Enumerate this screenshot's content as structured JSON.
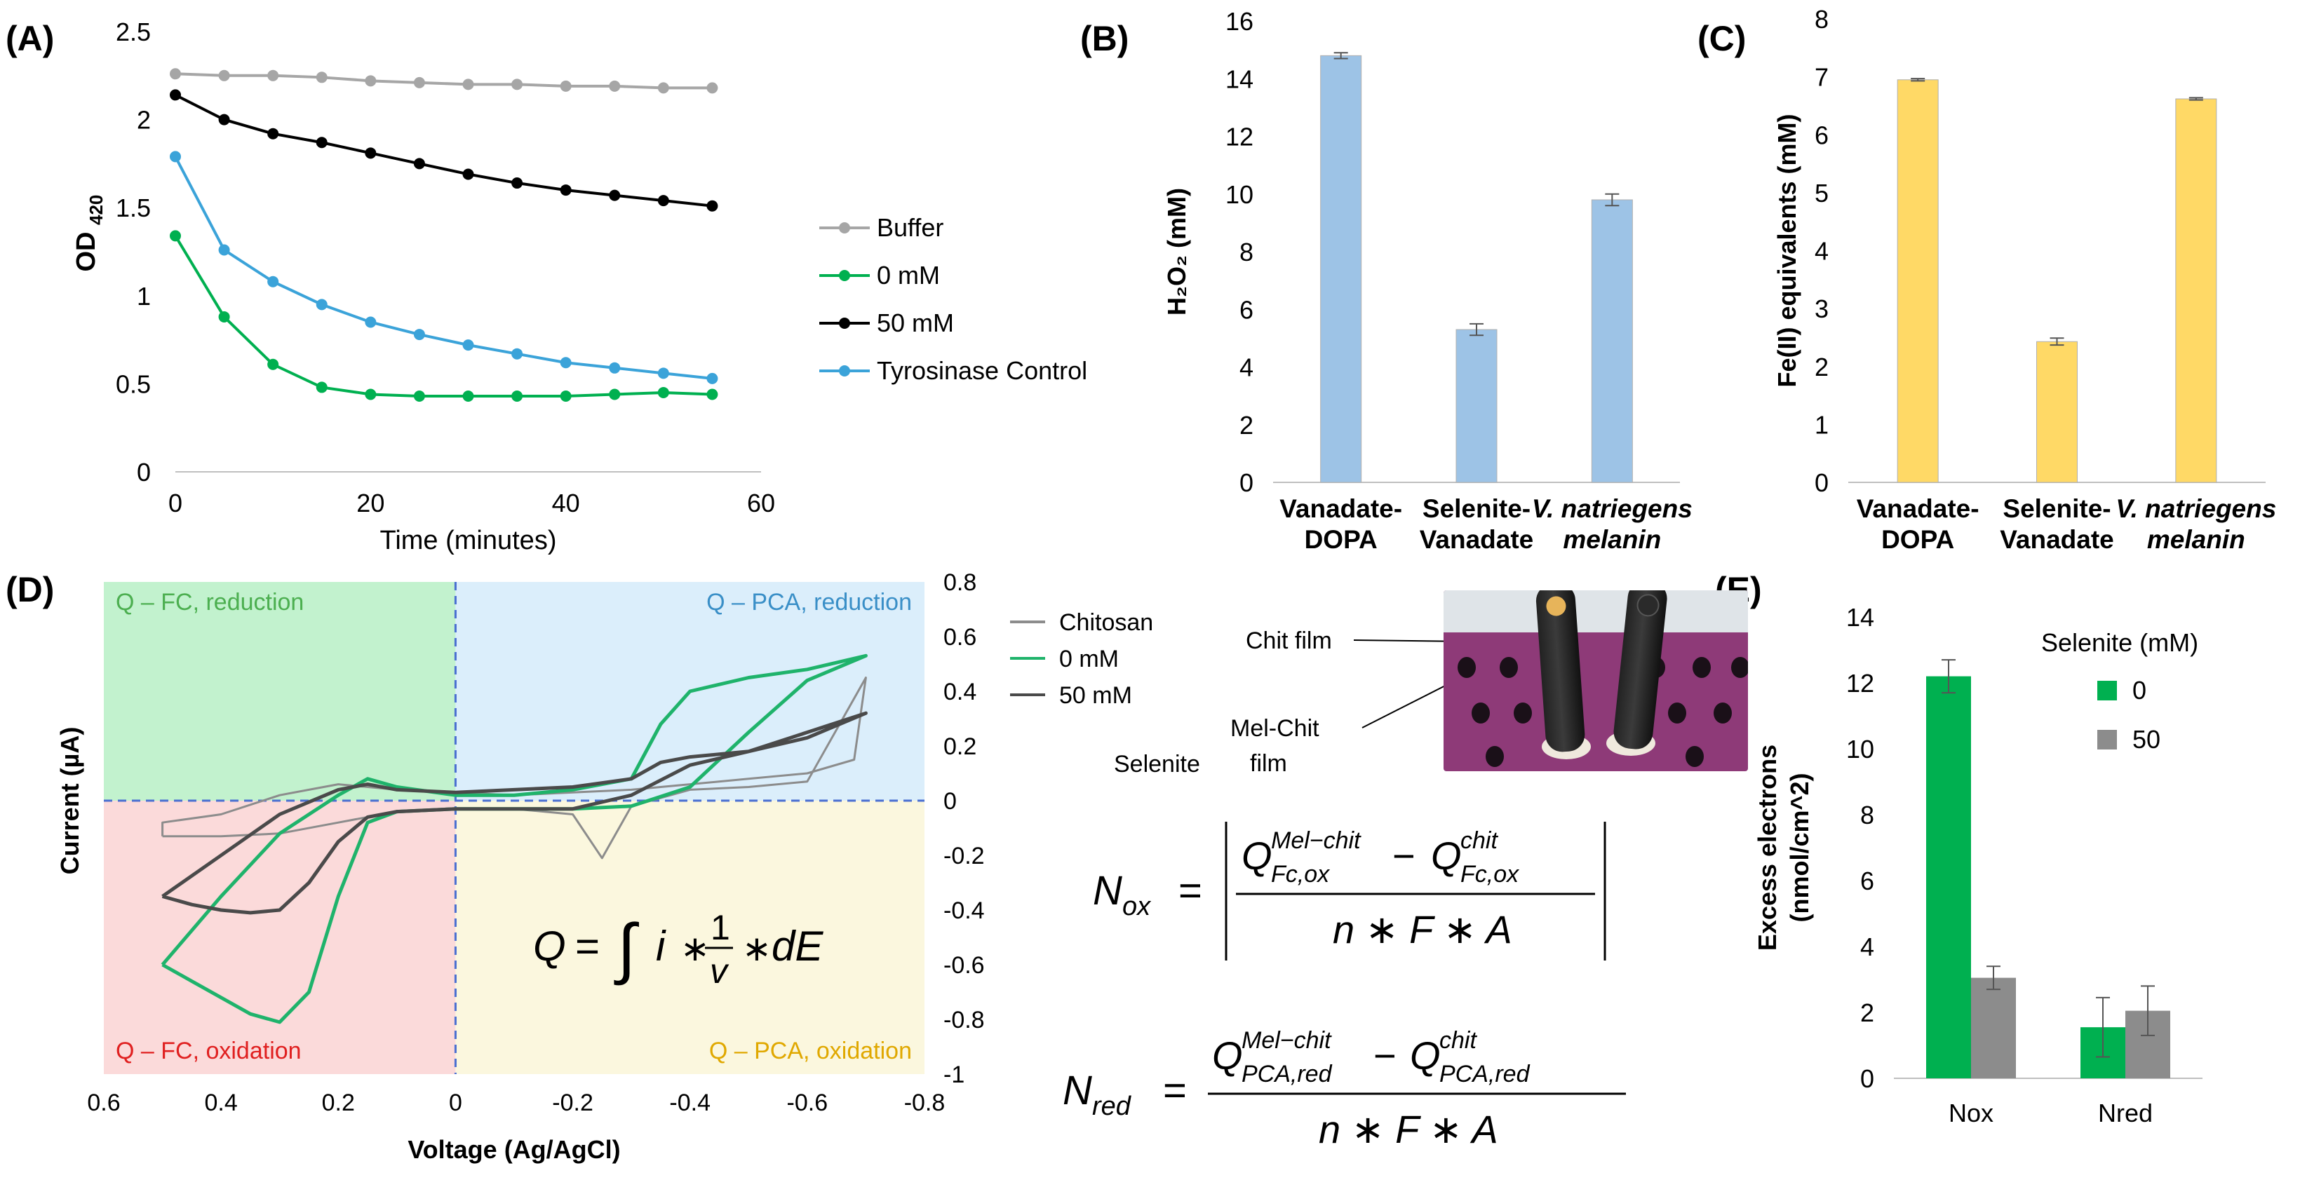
{
  "panels": {
    "A": "(A)",
    "B": "(B)",
    "C": "(C)",
    "D": "(D)",
    "E": "(E)"
  },
  "colors": {
    "grey": "#a6a6a6",
    "green": "#00b050",
    "black": "#000000",
    "blue": "#3ba3d9",
    "bar_blue": "#9dc3e6",
    "bar_yellow": "#ffd966",
    "bar_green": "#00b050",
    "bar_grey": "#8c8c8c",
    "chit_line": "#8c8c8c",
    "mel0_line": "#1fb36b",
    "mel50_line": "#4a4a4a"
  },
  "chart_data": [
    {
      "id": "A",
      "type": "line",
      "xlabel": "Time (minutes)",
      "ylabel": "OD",
      "ylabel_sub": "420",
      "xlim": [
        0,
        60
      ],
      "ylim": [
        0,
        2.5
      ],
      "xticks": [
        "0",
        "20",
        "40",
        "60"
      ],
      "xtick_values": [
        0,
        20,
        40,
        60
      ],
      "yticks": [
        "0",
        "0.5",
        "1",
        "1.5",
        "2",
        "2.5"
      ],
      "ytick_values": [
        0,
        0.5,
        1,
        1.5,
        2,
        2.5
      ],
      "x": [
        0,
        5,
        10,
        15,
        20,
        25,
        30,
        35,
        40,
        45,
        50,
        55
      ],
      "series": [
        {
          "name": "Buffer",
          "color": "#a6a6a6",
          "values": [
            2.26,
            2.25,
            2.25,
            2.24,
            2.22,
            2.21,
            2.2,
            2.2,
            2.19,
            2.19,
            2.18,
            2.18
          ]
        },
        {
          "name": "0 mM",
          "color": "#00b050",
          "values": [
            1.34,
            0.88,
            0.61,
            0.48,
            0.44,
            0.43,
            0.43,
            0.43,
            0.43,
            0.44,
            0.45,
            0.44
          ]
        },
        {
          "name": "50 mM",
          "color": "#000000",
          "values": [
            2.14,
            2.0,
            1.92,
            1.87,
            1.81,
            1.75,
            1.69,
            1.64,
            1.6,
            1.57,
            1.54,
            1.51
          ]
        },
        {
          "name": "Tyrosinase Control",
          "color": "#3ba3d9",
          "values": [
            1.79,
            1.26,
            1.08,
            0.95,
            0.85,
            0.78,
            0.72,
            0.67,
            0.62,
            0.59,
            0.56,
            0.53
          ]
        }
      ]
    },
    {
      "id": "B",
      "type": "bar",
      "ylabel": "H₂O₂ (mM)",
      "ylim": [
        0,
        16
      ],
      "yticks": [
        "0",
        "2",
        "4",
        "6",
        "8",
        "10",
        "12",
        "14",
        "16"
      ],
      "ytick_values": [
        0,
        2,
        4,
        6,
        8,
        10,
        12,
        14,
        16
      ],
      "categories": [
        [
          "Vanadate-",
          "DOPA"
        ],
        [
          "Selenite-",
          "Vanadate"
        ],
        [
          "V. natriegens",
          "melanin"
        ]
      ],
      "values": [
        14.8,
        5.3,
        9.8
      ],
      "errors": [
        0.1,
        0.2,
        0.2
      ]
    },
    {
      "id": "C",
      "type": "bar",
      "ylabel": "Fe(II) equivalents (mM)",
      "ylim": [
        0,
        8
      ],
      "yticks": [
        "0",
        "1",
        "2",
        "3",
        "4",
        "5",
        "6",
        "7",
        "8"
      ],
      "ytick_values": [
        0,
        1,
        2,
        3,
        4,
        5,
        6,
        7,
        8
      ],
      "categories": [
        [
          "Vanadate-",
          "DOPA"
        ],
        [
          "Selenite-",
          "Vanadate"
        ],
        [
          "V. natriegens",
          "melanin"
        ]
      ],
      "values": [
        6.95,
        2.43,
        6.62
      ],
      "errors": [
        0.02,
        0.06,
        0.02
      ]
    },
    {
      "id": "D",
      "type": "line",
      "xlabel": "Voltage (Ag/AgCl)",
      "ylabel": "Current (µA)",
      "xlim": [
        0.6,
        -0.8
      ],
      "ylim": [
        -1,
        0.8
      ],
      "xticks": [
        "0.6",
        "0.4",
        "0.2",
        "0",
        "-0.2",
        "-0.4",
        "-0.6",
        "-0.8"
      ],
      "xtick_values": [
        0.6,
        0.4,
        0.2,
        0,
        -0.2,
        -0.4,
        -0.6,
        -0.8
      ],
      "yticks": [
        "0.8",
        "0.6",
        "0.4",
        "0.2",
        "0",
        "-0.2",
        "-0.4",
        "-0.6",
        "-0.8",
        "-1"
      ],
      "ytick_values": [
        0.8,
        0.6,
        0.4,
        0.2,
        0,
        -0.2,
        -0.4,
        -0.6,
        -0.8,
        -1
      ],
      "quadrants": [
        "Q – FC, reduction",
        "Q – PCA, reduction",
        "Q – FC, oxidation",
        "Q – PCA, oxidation"
      ],
      "series": [
        {
          "name": "Chitosan",
          "color": "#8c8c8c",
          "x": [
            0.5,
            0.4,
            0.3,
            0.2,
            0.1,
            0.0,
            -0.1,
            -0.2,
            -0.25,
            -0.3,
            -0.4,
            -0.5,
            -0.6,
            -0.7,
            -0.68,
            -0.6,
            -0.5,
            -0.4,
            -0.3,
            -0.2,
            -0.1,
            0.0,
            0.1,
            0.2,
            0.25,
            0.3,
            0.4,
            0.5,
            0.5
          ],
          "y": [
            -0.13,
            -0.13,
            -0.12,
            -0.08,
            -0.04,
            -0.03,
            -0.03,
            -0.05,
            -0.21,
            -0.02,
            0.04,
            0.05,
            0.07,
            0.45,
            0.15,
            0.1,
            0.08,
            0.06,
            0.04,
            0.03,
            0.02,
            0.03,
            0.04,
            0.06,
            0.04,
            0.02,
            -0.05,
            -0.08,
            -0.13
          ]
        },
        {
          "name": "0 mM",
          "color": "#1fb36b",
          "x": [
            0.5,
            0.45,
            0.35,
            0.3,
            0.25,
            0.2,
            0.15,
            0.1,
            0.0,
            -0.1,
            -0.2,
            -0.3,
            -0.4,
            -0.5,
            -0.6,
            -0.7,
            -0.6,
            -0.5,
            -0.4,
            -0.35,
            -0.3,
            -0.2,
            -0.1,
            0.0,
            0.1,
            0.15,
            0.2,
            0.3,
            0.4,
            0.5
          ],
          "y": [
            -0.6,
            -0.66,
            -0.78,
            -0.81,
            -0.7,
            -0.35,
            -0.08,
            -0.04,
            -0.03,
            -0.03,
            -0.03,
            -0.02,
            0.05,
            0.25,
            0.44,
            0.53,
            0.48,
            0.45,
            0.4,
            0.28,
            0.08,
            0.04,
            0.02,
            0.02,
            0.05,
            0.08,
            0.02,
            -0.12,
            -0.35,
            -0.6
          ]
        },
        {
          "name": "50 mM",
          "color": "#4a4a4a",
          "x": [
            0.5,
            0.45,
            0.4,
            0.35,
            0.3,
            0.25,
            0.2,
            0.15,
            0.1,
            0.0,
            -0.1,
            -0.2,
            -0.3,
            -0.4,
            -0.5,
            -0.6,
            -0.7,
            -0.6,
            -0.5,
            -0.4,
            -0.35,
            -0.3,
            -0.2,
            -0.1,
            0.0,
            0.1,
            0.15,
            0.2,
            0.3,
            0.4,
            0.5
          ],
          "y": [
            -0.35,
            -0.38,
            -0.4,
            -0.41,
            -0.4,
            -0.3,
            -0.15,
            -0.06,
            -0.04,
            -0.03,
            -0.03,
            -0.03,
            0.02,
            0.13,
            0.18,
            0.23,
            0.32,
            0.25,
            0.18,
            0.16,
            0.14,
            0.08,
            0.05,
            0.04,
            0.03,
            0.04,
            0.06,
            0.04,
            -0.05,
            -0.2,
            -0.35
          ]
        }
      ],
      "legend_extra": "Selenite"
    },
    {
      "id": "E",
      "type": "bar",
      "ylabel": "Excess electrons",
      "ylabel2": "(nmol/cm^2)",
      "ylim": [
        0,
        14
      ],
      "yticks": [
        "0",
        "2",
        "4",
        "6",
        "8",
        "10",
        "12",
        "14"
      ],
      "ytick_values": [
        0,
        2,
        4,
        6,
        8,
        10,
        12,
        14
      ],
      "categories": [
        "Nox",
        "Nred"
      ],
      "legend_title": "Selenite (mM)",
      "series": [
        {
          "name": "0",
          "color": "#00b050",
          "values": [
            12.2,
            1.55
          ],
          "errors": [
            0.5,
            0.9
          ]
        },
        {
          "name": "50",
          "color": "#8c8c8c",
          "values": [
            3.05,
            2.05
          ],
          "errors": [
            0.35,
            0.75
          ]
        }
      ]
    }
  ],
  "photo": {
    "label1": "Chit film",
    "label2a": "Mel-Chit",
    "label2b": "film"
  },
  "equations": {
    "Q": {
      "lhs": "Q",
      "eq": "=",
      "integral": "∫",
      "i": "i",
      "times": "∗",
      "num": "1",
      "den": "v",
      "dE": "dE"
    },
    "Nox": {
      "lhs": "N",
      "lhs_sub": "ox",
      "eq": "=",
      "Q": "Q",
      "sup1": "Mel−chit",
      "sub1": "Fc,ox",
      "minus": "−",
      "sup2": "chit",
      "sub2": "Fc,ox",
      "den": "n ∗ F ∗ A"
    },
    "Nred": {
      "lhs": "N",
      "lhs_sub": "red",
      "eq": "=",
      "Q": "Q",
      "sup1": "Mel−chit",
      "sub1": "PCA,red",
      "minus": "−",
      "sup2": "chit",
      "sub2": "PCA,red",
      "den": "n ∗ F ∗ A"
    }
  }
}
